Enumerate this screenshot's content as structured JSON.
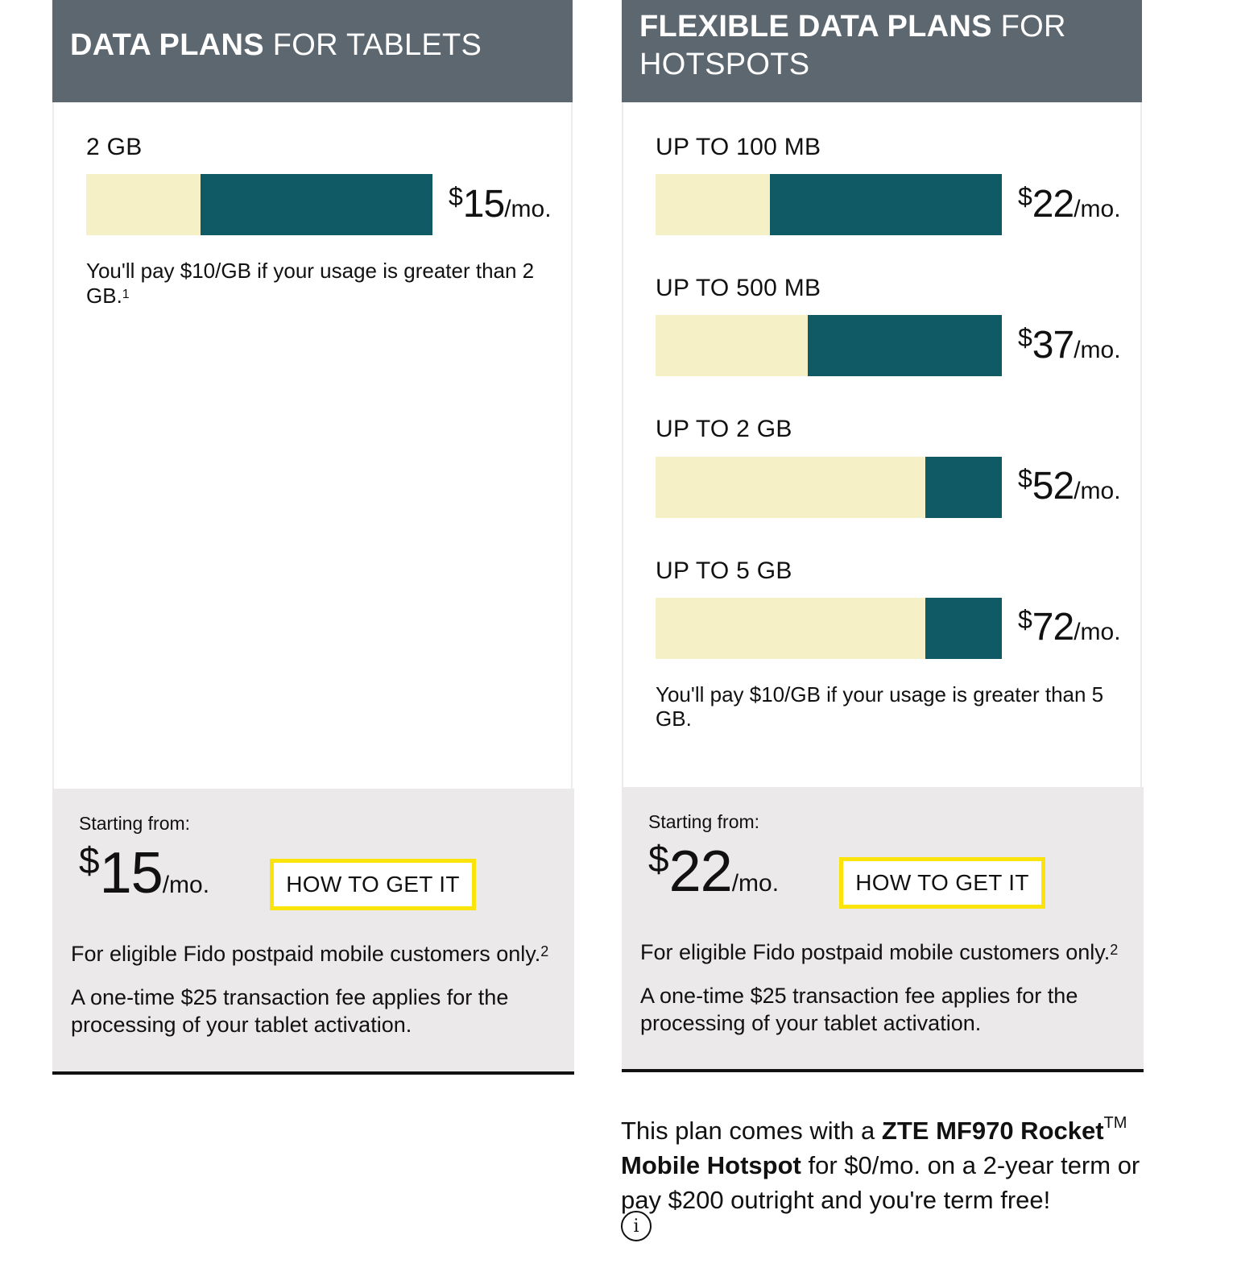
{
  "tablets": {
    "title_bold": "DATA PLANS",
    "title_light": "FOR TABLETS",
    "plans": [
      {
        "label": "2 GB",
        "currency": "$",
        "price": "15",
        "per": "/mo.",
        "fill_fraction": 0.67
      }
    ],
    "overage_text": "You'll pay $10/GB if your usage is greater than 2 GB.",
    "overage_footnote": "1",
    "footer": {
      "starting_label": "Starting from:",
      "currency": "$",
      "price": "15",
      "per": "/mo.",
      "cta_label": "HOW TO GET IT",
      "eligibility": "For eligible Fido postpaid mobile customers only.",
      "eligibility_footnote": "2",
      "fee_note": "A one-time $25 transaction fee applies for the processing of your tablet activation."
    }
  },
  "hotspots": {
    "title_bold": "FLEXIBLE DATA PLANS",
    "title_light": "FOR HOTSPOTS",
    "plans": [
      {
        "label": "UP TO 100 MB",
        "currency": "$",
        "price": "22",
        "per": "/mo.",
        "fill_fraction": 0.67
      },
      {
        "label": "UP TO 500 MB",
        "currency": "$",
        "price": "37",
        "per": "/mo.",
        "fill_fraction": 0.56
      },
      {
        "label": "UP TO 2 GB",
        "currency": "$",
        "price": "52",
        "per": "/mo.",
        "fill_fraction": 0.22
      },
      {
        "label": "UP TO 5 GB",
        "currency": "$",
        "price": "72",
        "per": "/mo.",
        "fill_fraction": 0.22
      }
    ],
    "overage_text": "You'll pay $10/GB if your usage is greater than 5 GB.",
    "footer": {
      "starting_label": "Starting from:",
      "currency": "$",
      "price": "22",
      "per": "/mo.",
      "cta_label": "HOW TO GET IT",
      "eligibility": "For eligible Fido postpaid mobile customers only.",
      "eligibility_footnote": "2",
      "fee_note": "A one-time $25 transaction fee applies for the processing of your tablet activation."
    }
  },
  "promo": {
    "text_before": "This plan comes with a ",
    "device_name": "ZTE MF970 Rocket",
    "trademark": "TM",
    "device_name_2": "Mobile Hotspot",
    "text_after": " for $0/mo. on a 2-year term or pay $200 outright and you're term free!",
    "info_icon": "info-icon",
    "info_glyph": "i"
  },
  "colors": {
    "header_bg": "#5c6770",
    "bar_track": "#f5f0c6",
    "bar_fill": "#0f5a64",
    "footer_bg": "#ebe9e9",
    "cta_border": "#fbe40c"
  }
}
